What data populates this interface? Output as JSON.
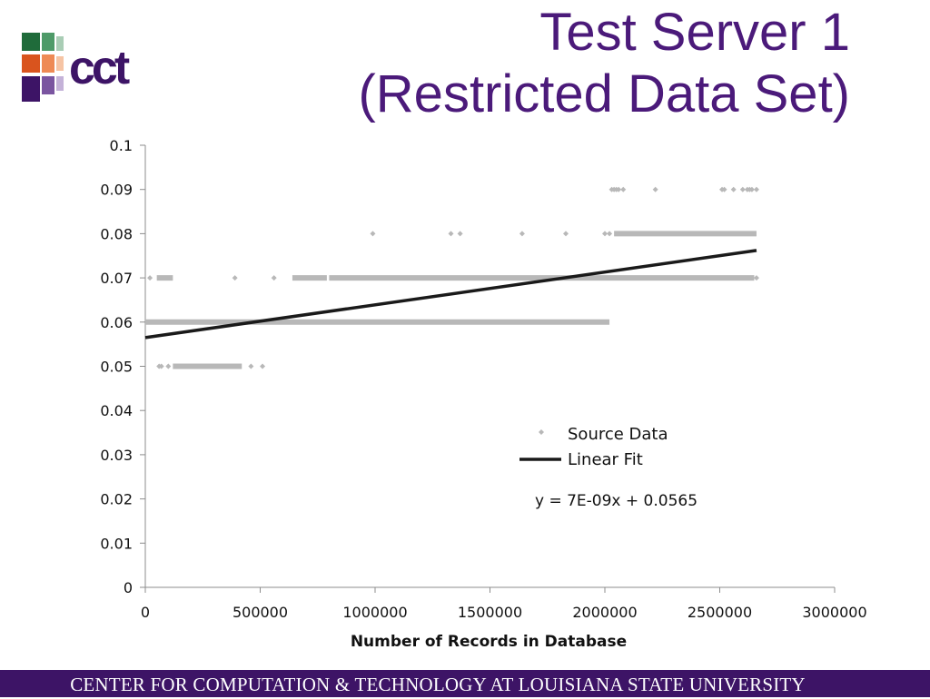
{
  "title": {
    "line1": "Test Server 1",
    "line2": "(Restricted Data Set)"
  },
  "logo": {
    "text": "cct",
    "icon": "cct-logo-icon",
    "color": "#3d1466"
  },
  "footer": {
    "text": "CENTER FOR COMPUTATION & TECHNOLOGY AT LOUISIANA STATE UNIVERSITY"
  },
  "colors": {
    "title": "#4b1a7a",
    "footer_bg": "#3d1466",
    "points": "#b8b8b8",
    "fit": "#1a1a1a"
  },
  "chart_data": {
    "type": "scatter",
    "xlabel": "Number of Records in Database",
    "ylabel": "",
    "xlim": [
      0,
      3000000
    ],
    "ylim": [
      0,
      0.1
    ],
    "xticks": [
      "0",
      "500000",
      "1000000",
      "1500000",
      "2000000",
      "2500000",
      "3000000"
    ],
    "yticks": [
      "0",
      "0.01",
      "0.02",
      "0.03",
      "0.04",
      "0.05",
      "0.06",
      "0.07",
      "0.08",
      "0.09",
      "0.1"
    ],
    "legend": {
      "position": "center-right",
      "source_label": "Source Data",
      "fit_label": "Linear Fit"
    },
    "equation": "y = 7E-09x + 0.0565",
    "grid": false,
    "series": [
      {
        "name": "Source Data",
        "runs": [
          {
            "y": 0.06,
            "x_start": 0,
            "x_end": 2020000
          },
          {
            "y": 0.07,
            "x_start": 800000,
            "x_end": 2650000
          },
          {
            "y": 0.08,
            "x_start": 2040000,
            "x_end": 2660000
          },
          {
            "y": 0.05,
            "x_start": 120000,
            "x_end": 420000
          },
          {
            "y": 0.07,
            "x_start": 640000,
            "x_end": 790000
          },
          {
            "y": 0.07,
            "x_start": 50000,
            "x_end": 120000
          }
        ],
        "points": [
          {
            "x": 20000,
            "y": 0.07
          },
          {
            "x": 390000,
            "y": 0.07
          },
          {
            "x": 560000,
            "y": 0.07
          },
          {
            "x": 2660000,
            "y": 0.07
          },
          {
            "x": 60000,
            "y": 0.05
          },
          {
            "x": 70000,
            "y": 0.05
          },
          {
            "x": 100000,
            "y": 0.05
          },
          {
            "x": 460000,
            "y": 0.05
          },
          {
            "x": 510000,
            "y": 0.05
          },
          {
            "x": 990000,
            "y": 0.08
          },
          {
            "x": 1330000,
            "y": 0.08
          },
          {
            "x": 1370000,
            "y": 0.08
          },
          {
            "x": 1640000,
            "y": 0.08
          },
          {
            "x": 1830000,
            "y": 0.08
          },
          {
            "x": 2000000,
            "y": 0.08
          },
          {
            "x": 2020000,
            "y": 0.08
          },
          {
            "x": 2030000,
            "y": 0.09
          },
          {
            "x": 2040000,
            "y": 0.09
          },
          {
            "x": 2050000,
            "y": 0.09
          },
          {
            "x": 2060000,
            "y": 0.09
          },
          {
            "x": 2080000,
            "y": 0.09
          },
          {
            "x": 2220000,
            "y": 0.09
          },
          {
            "x": 2510000,
            "y": 0.09
          },
          {
            "x": 2520000,
            "y": 0.09
          },
          {
            "x": 2560000,
            "y": 0.09
          },
          {
            "x": 2600000,
            "y": 0.09
          },
          {
            "x": 2620000,
            "y": 0.09
          },
          {
            "x": 2630000,
            "y": 0.09
          },
          {
            "x": 2640000,
            "y": 0.09
          },
          {
            "x": 2660000,
            "y": 0.09
          }
        ]
      },
      {
        "name": "Linear Fit",
        "x": [
          0,
          2660000
        ],
        "y": [
          0.0565,
          0.0762
        ]
      }
    ]
  }
}
